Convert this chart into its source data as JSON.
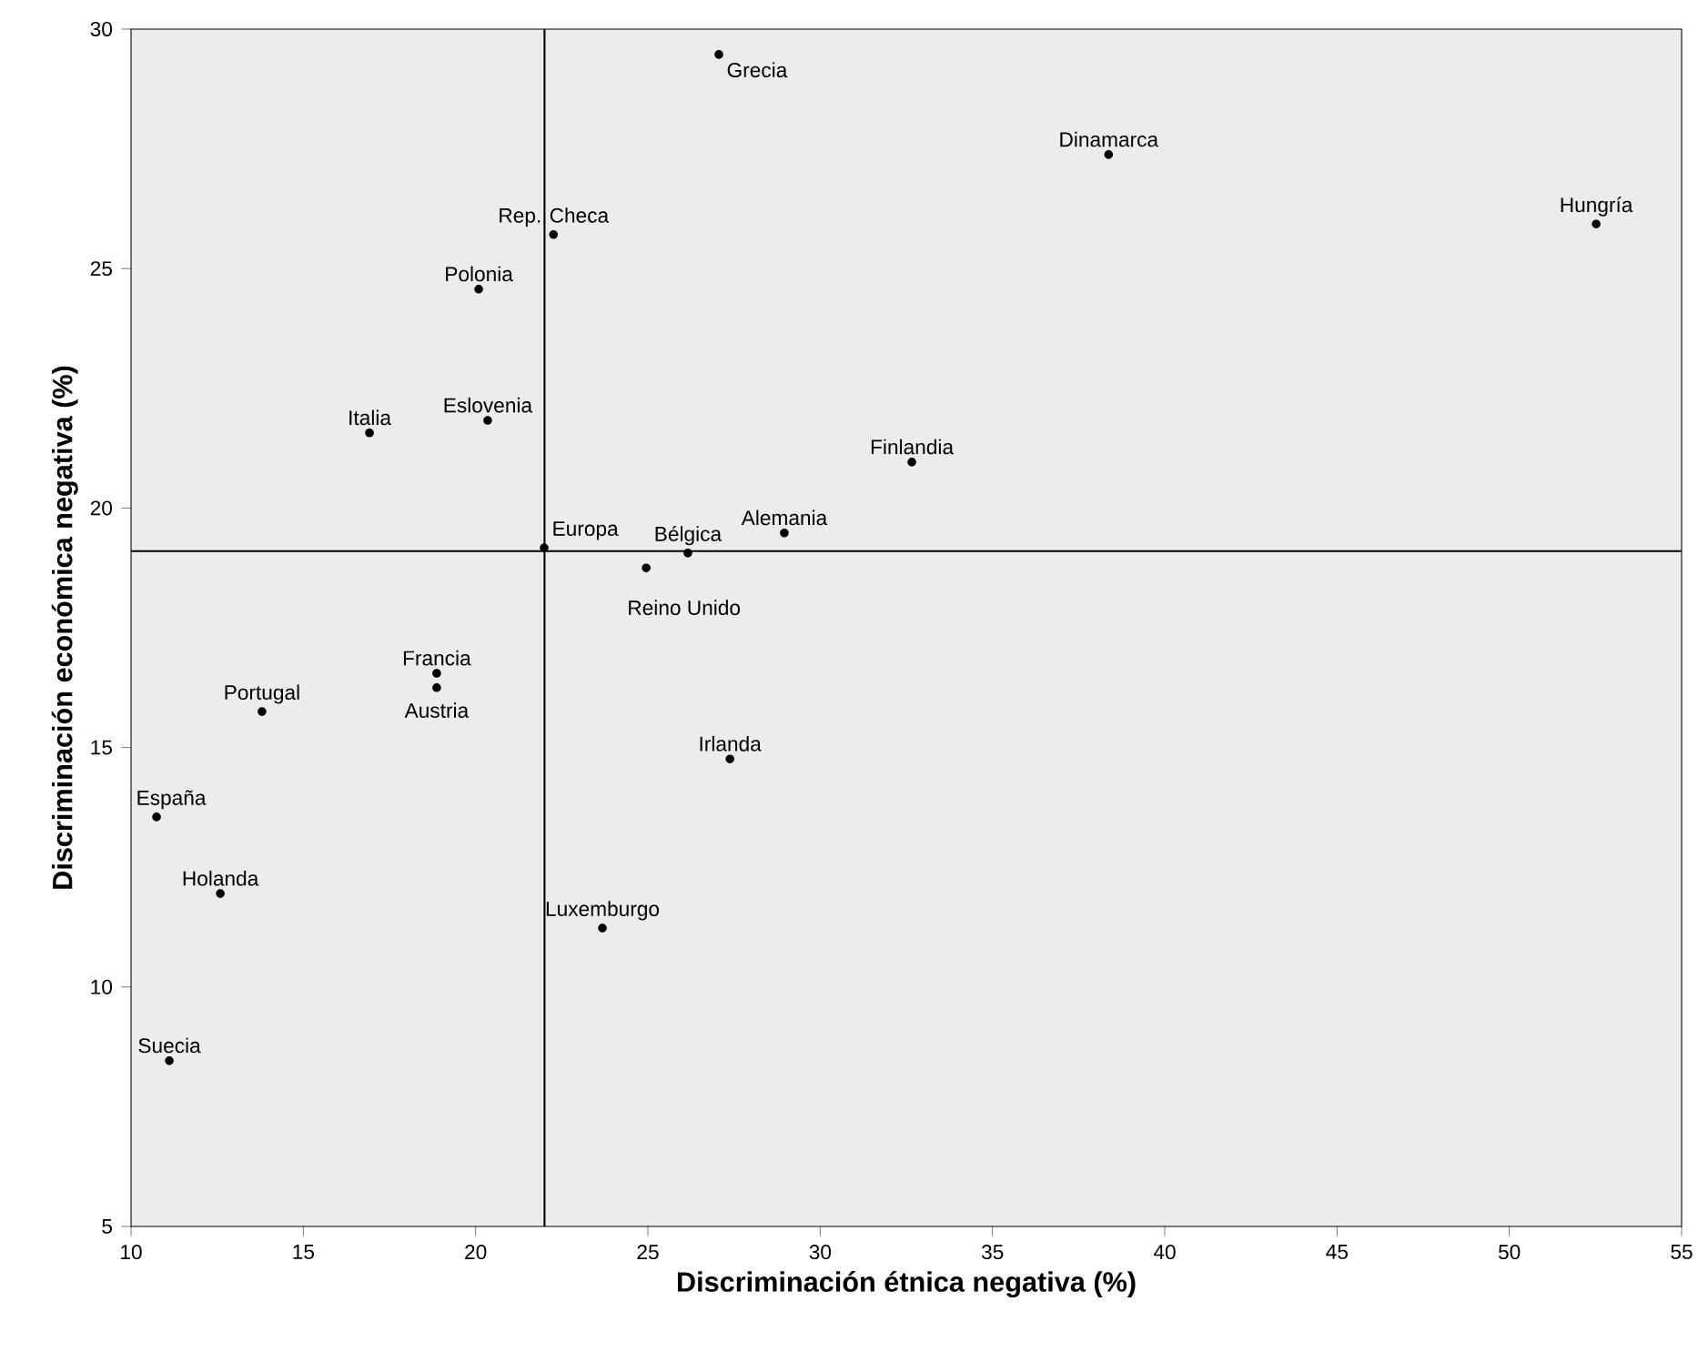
{
  "chart_data": {
    "type": "scatter",
    "xlabel": "Discriminación étnica negativa (%)",
    "ylabel": "Discriminación económica negativa (%)",
    "xlim": [
      10,
      55
    ],
    "xticks": [
      10,
      15,
      20,
      25,
      30,
      35,
      40,
      45,
      50,
      55
    ],
    "ylim": [
      5,
      30
    ],
    "yticks": [
      5,
      10,
      15,
      20,
      25,
      30
    ],
    "grid": false,
    "marker": "circle",
    "series": [
      {
        "color": "#000000",
        "x": [
          27.06,
          38.37,
          52.52,
          22.26,
          20.09,
          16.92,
          20.35,
          32.66,
          28.96,
          21.99,
          26.16,
          24.95,
          18.87,
          18.87,
          13.8,
          27.38,
          10.74,
          12.59,
          23.68,
          11.11
        ],
        "values": [
          29.47,
          27.38,
          25.93,
          25.71,
          24.57,
          21.57,
          21.83,
          20.96,
          19.48,
          19.17,
          19.06,
          18.75,
          16.55,
          16.25,
          15.75,
          14.76,
          13.55,
          11.95,
          11.23,
          8.46
        ]
      }
    ],
    "ref_lines": [
      {
        "axis": "x",
        "value": 22.0,
        "color": "#000000"
      },
      {
        "axis": "y",
        "value": 19.1,
        "color": "#000000"
      }
    ],
    "annotations": [
      {
        "text": "Grecia",
        "x": 27.06,
        "y": 29.47
      },
      {
        "text": "Dinamarca",
        "x": 38.37,
        "y": 27.38
      },
      {
        "text": "Hungría",
        "x": 52.52,
        "y": 25.93
      },
      {
        "text": "Rep. Checa",
        "x": 22.26,
        "y": 25.71
      },
      {
        "text": "Polonia",
        "x": 20.09,
        "y": 24.57
      },
      {
        "text": "Italia",
        "x": 16.92,
        "y": 21.57
      },
      {
        "text": "Eslovenia",
        "x": 20.35,
        "y": 21.83
      },
      {
        "text": "Finlandia",
        "x": 32.66,
        "y": 20.96
      },
      {
        "text": "Alemania",
        "x": 28.96,
        "y": 19.48
      },
      {
        "text": "Europa",
        "x": 21.99,
        "y": 19.17
      },
      {
        "text": "Bélgica",
        "x": 26.16,
        "y": 19.06
      },
      {
        "text": "Reino Unido",
        "x": 24.95,
        "y": 18.75
      },
      {
        "text": "Francia",
        "x": 18.87,
        "y": 16.55
      },
      {
        "text": "Austria",
        "x": 18.87,
        "y": 16.25
      },
      {
        "text": "Portugal",
        "x": 13.8,
        "y": 15.75
      },
      {
        "text": "Irlanda",
        "x": 27.38,
        "y": 14.76
      },
      {
        "text": "España",
        "x": 10.74,
        "y": 13.55
      },
      {
        "text": "Holanda",
        "x": 12.59,
        "y": 11.95
      },
      {
        "text": "Luxemburgo",
        "x": 23.68,
        "y": 11.23
      },
      {
        "text": "Suecia",
        "x": 11.11,
        "y": 8.46
      }
    ]
  }
}
